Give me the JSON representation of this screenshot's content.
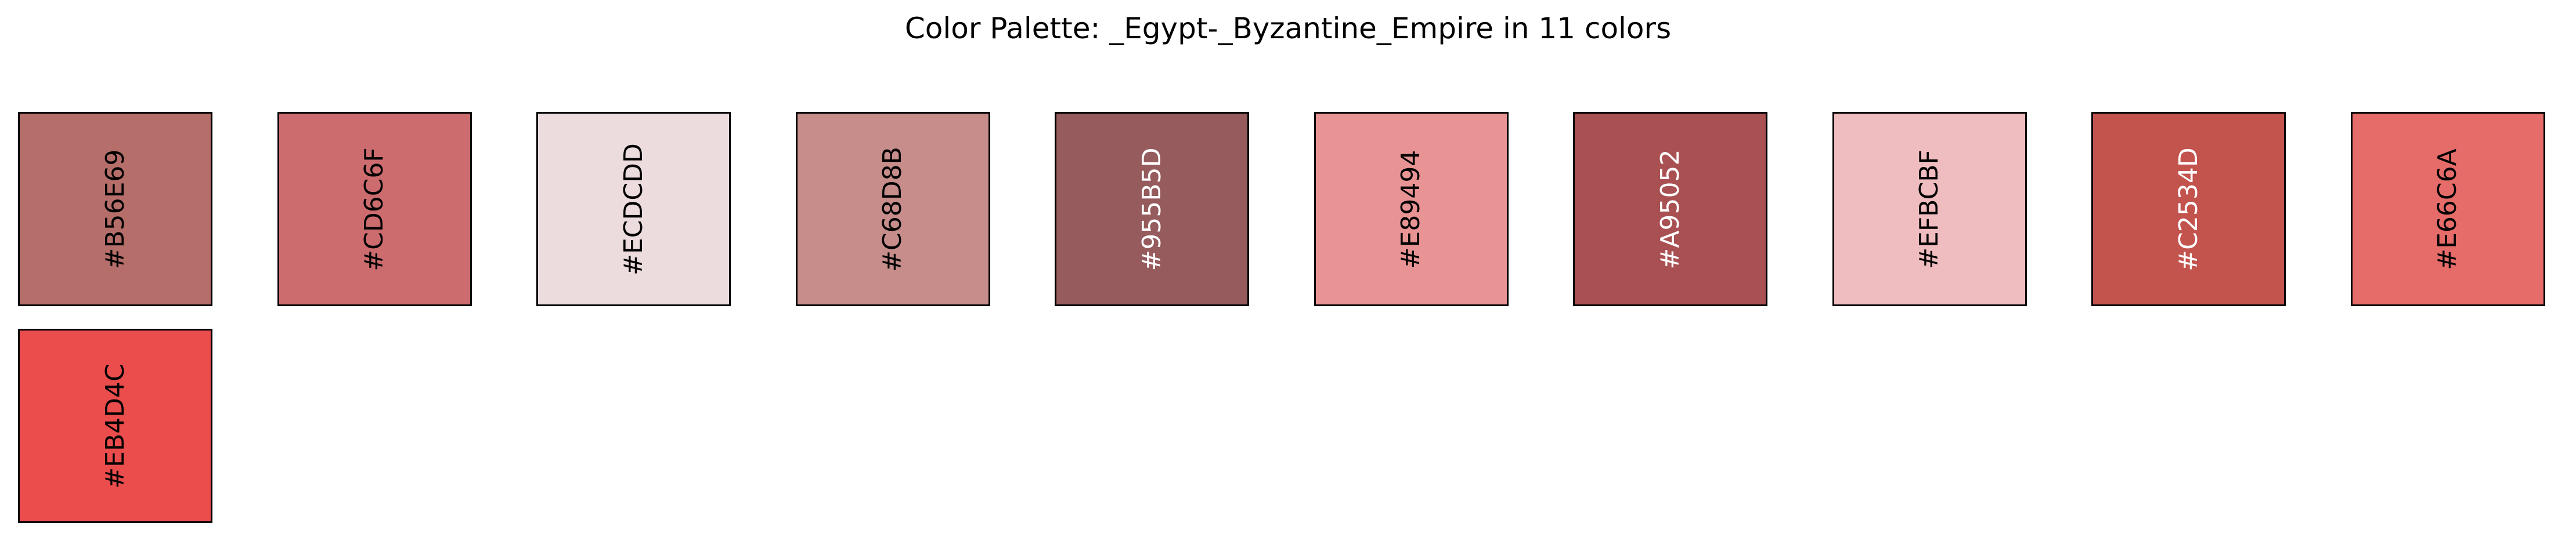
{
  "chart_data": {
    "type": "palette",
    "title": "Color Palette: _Egypt-_Byzantine_Empire in 11 colors",
    "colors": [
      {
        "hex": "#B56E69",
        "label": "#B56E69",
        "text_color": "#000000"
      },
      {
        "hex": "#CD6C6F",
        "label": "#CD6C6F",
        "text_color": "#000000"
      },
      {
        "hex": "#ECDCDD",
        "label": "#ECDCDD",
        "text_color": "#000000"
      },
      {
        "hex": "#C68D8B",
        "label": "#C68D8B",
        "text_color": "#000000"
      },
      {
        "hex": "#955B5D",
        "label": "#955B5D",
        "text_color": "#ffffff"
      },
      {
        "hex": "#E89494",
        "label": "#E89494",
        "text_color": "#000000"
      },
      {
        "hex": "#A95052",
        "label": "#A95052",
        "text_color": "#ffffff"
      },
      {
        "hex": "#EFBCBF",
        "label": "#EFBCBF",
        "text_color": "#000000"
      },
      {
        "hex": "#C2534D",
        "label": "#C2534D",
        "text_color": "#ffffff"
      },
      {
        "hex": "#E66C6A",
        "label": "#E66C6A",
        "text_color": "#000000"
      },
      {
        "hex": "#EB4D4C",
        "label": "#EB4D4C",
        "text_color": "#000000"
      }
    ]
  }
}
